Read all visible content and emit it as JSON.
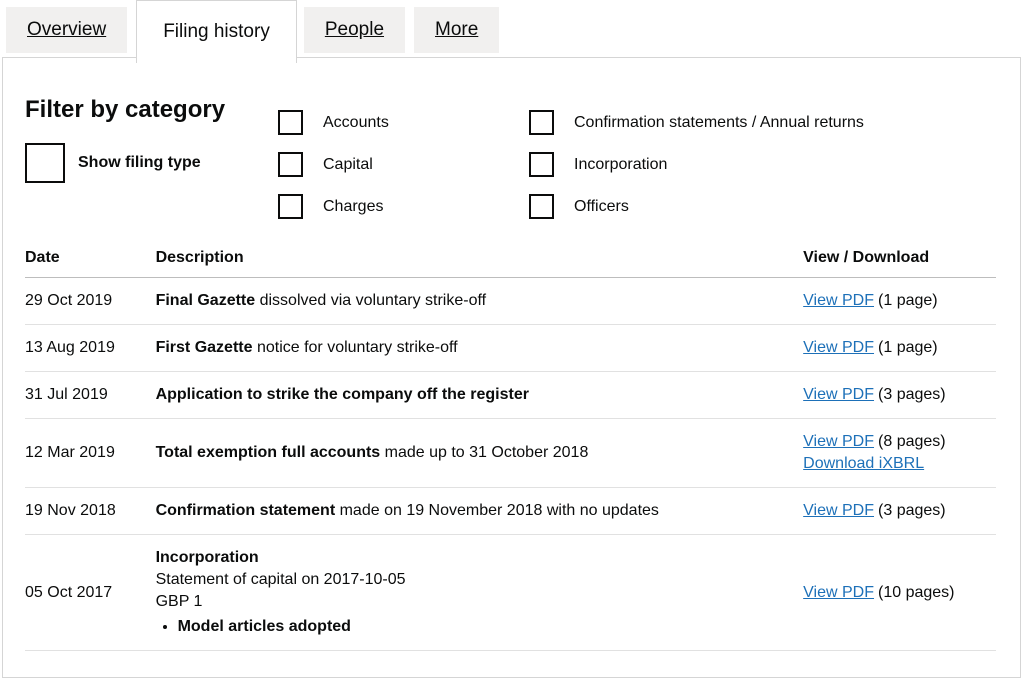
{
  "tabs": [
    {
      "label": "Overview"
    },
    {
      "label": "Filing history"
    },
    {
      "label": "People"
    },
    {
      "label": "More"
    }
  ],
  "filter": {
    "heading": "Filter by category",
    "show_filing_type": "Show filing type",
    "categories": [
      "Accounts",
      "Confirmation statements / Annual returns",
      "Capital",
      "Incorporation",
      "Charges",
      "Officers"
    ]
  },
  "table": {
    "headers": {
      "date": "Date",
      "description": "Description",
      "view_download": "View / Download"
    },
    "rows": [
      {
        "date": "29 Oct 2019",
        "desc_bold": "Final Gazette",
        "desc_text": " dissolved via voluntary strike-off",
        "links": [
          {
            "label": "View PDF",
            "pages": "(1 page)"
          }
        ]
      },
      {
        "date": "13 Aug 2019",
        "desc_bold": "First Gazette",
        "desc_text": " notice for voluntary strike-off",
        "links": [
          {
            "label": "View PDF",
            "pages": "(1 page)"
          }
        ]
      },
      {
        "date": "31 Jul 2019",
        "desc_bold": "Application to strike the company off the register",
        "desc_text": "",
        "links": [
          {
            "label": "View PDF",
            "pages": "(3 pages)"
          }
        ]
      },
      {
        "date": "12 Mar 2019",
        "desc_bold": "Total exemption full accounts",
        "desc_text": " made up to 31 October 2018",
        "links": [
          {
            "label": "View PDF",
            "pages": "(8 pages)"
          },
          {
            "label": "Download iXBRL",
            "pages": ""
          }
        ]
      },
      {
        "date": "19 Nov 2018",
        "desc_bold": "Confirmation statement",
        "desc_text": " made on 19 November 2018 with no updates",
        "links": [
          {
            "label": "View PDF",
            "pages": "(3 pages)"
          }
        ]
      },
      {
        "date": "05 Oct 2017",
        "desc_bold": "Incorporation",
        "desc_line2": "Statement of capital on 2017-10-05",
        "desc_line3": "GBP 1",
        "desc_bullet": "Model articles adopted",
        "links": [
          {
            "label": "View PDF",
            "pages": "(10 pages)"
          }
        ]
      }
    ]
  },
  "colors": {
    "text": "#0b0c0c",
    "link_blue": "#1d70b8",
    "tab_background": "#f1f0ef",
    "panel_border": "#d5d5d5"
  }
}
